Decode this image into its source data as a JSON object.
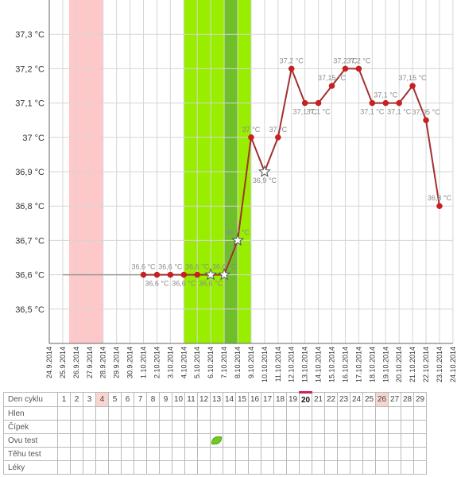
{
  "chart_data": {
    "type": "line",
    "y_unit": "°C",
    "ylim": [
      36.4,
      37.4
    ],
    "y_ticks": [
      "36,5 °C",
      "36,6 °C",
      "36,7 °C",
      "36,8 °C",
      "36,9 °C",
      "37 °C",
      "37,1 °C",
      "37,2 °C",
      "37,3 °C"
    ],
    "y_tick_values": [
      36.5,
      36.6,
      36.7,
      36.8,
      36.9,
      37.0,
      37.1,
      37.2,
      37.3
    ],
    "x_dates": [
      "24.9.2014",
      "25.9.2014",
      "26.9.2014",
      "27.9.2014",
      "28.9.2014",
      "29.9.2014",
      "30.9.2014",
      "1.10.2014",
      "2.10.2014",
      "3.10.2014",
      "4.10.2014",
      "5.10.2014",
      "6.10.2014",
      "7.10.2014",
      "8.10.2014",
      "9.10.2014",
      "10.10.2014",
      "11.10.2014",
      "12.10.2014",
      "13.10.2014",
      "14.10.2014",
      "15.10.2014",
      "16.10.2014",
      "17.10.2014",
      "18.10.2014",
      "19.10.2014",
      "20.10.2014",
      "21.10.2014",
      "22.10.2014",
      "23.10.2014",
      "24.10.2014"
    ],
    "bands": [
      {
        "type": "period",
        "from": "25.9.2014",
        "to": "27.9.2014",
        "color": "#ffc8c8"
      },
      {
        "type": "fertile",
        "from": "4.10.2014",
        "to": "8.10.2014",
        "color": "#99ee00"
      },
      {
        "type": "ovulation",
        "from": "7.10.2014",
        "to": "7.10.2014",
        "color": "#6fbf2a"
      }
    ],
    "baseline": {
      "from": "25.9.2014",
      "to": "1.10.2014",
      "value": 36.6
    },
    "series": [
      {
        "line_color": "#a33030",
        "points": [
          {
            "x": "1.10.2014",
            "y": 36.6,
            "label": "36,6 °C",
            "marker": "dot"
          },
          {
            "x": "2.10.2014",
            "y": 36.6,
            "label": "36,6 °C",
            "marker": "dot"
          },
          {
            "x": "3.10.2014",
            "y": 36.6,
            "label": "36,6 °C",
            "marker": "dot"
          },
          {
            "x": "4.10.2014",
            "y": 36.6,
            "label": "36,6 °C",
            "marker": "dot"
          },
          {
            "x": "5.10.2014",
            "y": 36.6,
            "label": "36,6 °C",
            "marker": "dot"
          },
          {
            "x": "6.10.2014",
            "y": 36.6,
            "label": "36,6 °C",
            "marker": "star"
          },
          {
            "x": "7.10.2014",
            "y": 36.6,
            "label": "36,6 °C",
            "marker": "star"
          },
          {
            "x": "8.10.2014",
            "y": 36.7,
            "label": "36,7 °C",
            "marker": "star"
          },
          {
            "x": "9.10.2014",
            "y": 37.0,
            "label": "37 °C",
            "marker": "dot"
          },
          {
            "x": "10.10.2014",
            "y": 36.9,
            "label": "36,9 °C",
            "marker": "star"
          },
          {
            "x": "11.10.2014",
            "y": 37.0,
            "label": "37 °C",
            "marker": "dot"
          },
          {
            "x": "12.10.2014",
            "y": 37.2,
            "label": "37,2 °C",
            "marker": "dot"
          },
          {
            "x": "13.10.2014",
            "y": 37.1,
            "label": "37,1 °C",
            "marker": "dot"
          },
          {
            "x": "14.10.2014",
            "y": 37.1,
            "label": "37,1 °C",
            "marker": "dot"
          },
          {
            "x": "15.10.2014",
            "y": 37.15,
            "label": "37,15 °C",
            "marker": "dot"
          },
          {
            "x": "16.10.2014",
            "y": 37.2,
            "label": "37,2 °C",
            "marker": "dot"
          },
          {
            "x": "17.10.2014",
            "y": 37.2,
            "label": "37,2 °C",
            "marker": "dot"
          },
          {
            "x": "18.10.2014",
            "y": 37.1,
            "label": "37,1 °C",
            "marker": "dot"
          },
          {
            "x": "19.10.2014",
            "y": 37.1,
            "label": "37,1 °C",
            "marker": "dot"
          },
          {
            "x": "20.10.2014",
            "y": 37.1,
            "label": "37,1 °C",
            "marker": "dot"
          },
          {
            "x": "21.10.2014",
            "y": 37.15,
            "label": "37,15 °C",
            "marker": "dot"
          },
          {
            "x": "22.10.2014",
            "y": 37.05,
            "label": "37,05 °C",
            "marker": "dot"
          },
          {
            "x": "23.10.2014",
            "y": 36.8,
            "label": "36,8 °C",
            "marker": "dot"
          }
        ]
      }
    ]
  },
  "table": {
    "rows": [
      {
        "label": "Den cyklu",
        "cells": [
          "1",
          "2",
          "3",
          "4",
          "5",
          "6",
          "7",
          "8",
          "9",
          "10",
          "11",
          "12",
          "13",
          "14",
          "15",
          "16",
          "17",
          "18",
          "19",
          "20",
          "21",
          "22",
          "23",
          "24",
          "25",
          "26",
          "27",
          "28",
          "29"
        ]
      },
      {
        "label": "Hlen",
        "cells": []
      },
      {
        "label": "Čípek",
        "cells": []
      },
      {
        "label": "Ovu test",
        "cells": [],
        "icon_day": 13,
        "icon": "leaf-icon"
      },
      {
        "label": "Těhu test",
        "cells": []
      },
      {
        "label": "Léky",
        "cells": []
      }
    ],
    "highlight_days": [
      4,
      26
    ],
    "today_day": 20
  }
}
